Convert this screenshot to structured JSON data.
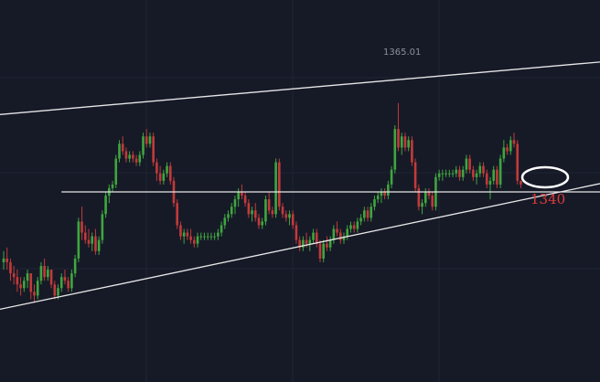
{
  "chart_data": {
    "type": "candlestick",
    "annotations": {
      "peak_label": "1365.01",
      "level_label": "1340"
    },
    "colors": {
      "background": "#161a27",
      "grid": "#1f2433",
      "up": "#3fa63f",
      "down": "#c23a3a",
      "trendline": "#e6e6e6",
      "level_text": "#e03b3b",
      "peak_text": "#8a8f9c"
    },
    "grid": true,
    "trendlines": [
      {
        "name": "upper-channel",
        "points": [
          [
            0,
            1362
          ],
          [
            174,
            1376
          ]
        ]
      },
      {
        "name": "lower-channel",
        "points": [
          [
            13,
            1312
          ],
          [
            174,
            1343
          ]
        ]
      },
      {
        "name": "support-level",
        "points": [
          [
            17,
            1341
          ],
          [
            174,
            1341
          ]
        ]
      }
    ],
    "candles": [
      [
        1322,
        1325,
        1320,
        1323
      ],
      [
        1323,
        1326,
        1320,
        1322
      ],
      [
        1322,
        1323,
        1317,
        1319
      ],
      [
        1319,
        1321,
        1316,
        1318
      ],
      [
        1318,
        1320,
        1314,
        1316
      ],
      [
        1316,
        1318,
        1313,
        1315
      ],
      [
        1315,
        1318,
        1314,
        1317
      ],
      [
        1317,
        1320,
        1315,
        1319
      ],
      [
        1319,
        1319,
        1312,
        1314
      ],
      [
        1314,
        1316,
        1311,
        1313
      ],
      [
        1313,
        1318,
        1312,
        1317
      ],
      [
        1317,
        1322,
        1316,
        1321
      ],
      [
        1321,
        1323,
        1317,
        1318
      ],
      [
        1318,
        1321,
        1317,
        1320
      ],
      [
        1320,
        1320,
        1315,
        1316
      ],
      [
        1316,
        1317,
        1312,
        1313
      ],
      [
        1313,
        1316,
        1312,
        1315
      ],
      [
        1315,
        1319,
        1314,
        1318
      ],
      [
        1318,
        1320,
        1316,
        1317
      ],
      [
        1317,
        1318,
        1314,
        1315
      ],
      [
        1315,
        1320,
        1314,
        1319
      ],
      [
        1319,
        1324,
        1318,
        1323
      ],
      [
        1323,
        1334,
        1322,
        1333
      ],
      [
        1333,
        1337,
        1328,
        1330
      ],
      [
        1330,
        1332,
        1327,
        1328
      ],
      [
        1328,
        1331,
        1326,
        1327
      ],
      [
        1327,
        1330,
        1325,
        1329
      ],
      [
        1329,
        1331,
        1324,
        1325
      ],
      [
        1325,
        1329,
        1324,
        1328
      ],
      [
        1328,
        1336,
        1327,
        1335
      ],
      [
        1335,
        1341,
        1334,
        1340
      ],
      [
        1340,
        1343,
        1338,
        1342
      ],
      [
        1342,
        1344,
        1341,
        1343
      ],
      [
        1343,
        1351,
        1342,
        1350
      ],
      [
        1350,
        1355,
        1349,
        1354
      ],
      [
        1354,
        1356,
        1351,
        1352
      ],
      [
        1352,
        1353,
        1349,
        1350
      ],
      [
        1350,
        1352,
        1349,
        1351
      ],
      [
        1351,
        1352,
        1349,
        1350
      ],
      [
        1350,
        1351,
        1348,
        1349
      ],
      [
        1349,
        1352,
        1348,
        1351
      ],
      [
        1351,
        1357,
        1350,
        1356
      ],
      [
        1356,
        1358,
        1353,
        1354
      ],
      [
        1354,
        1357,
        1353,
        1356
      ],
      [
        1356,
        1357,
        1348,
        1349
      ],
      [
        1349,
        1350,
        1344,
        1346
      ],
      [
        1346,
        1348,
        1343,
        1344
      ],
      [
        1344,
        1347,
        1343,
        1346
      ],
      [
        1346,
        1349,
        1345,
        1348
      ],
      [
        1348,
        1349,
        1343,
        1344
      ],
      [
        1344,
        1345,
        1337,
        1338
      ],
      [
        1338,
        1339,
        1331,
        1332
      ],
      [
        1332,
        1333,
        1328,
        1329
      ],
      [
        1329,
        1331,
        1327,
        1330
      ],
      [
        1330,
        1331,
        1328,
        1329
      ],
      [
        1329,
        1331,
        1327,
        1328
      ],
      [
        1328,
        1329,
        1326,
        1327
      ],
      [
        1327,
        1330,
        1326,
        1329
      ],
      [
        1329,
        1330,
        1328,
        1329
      ],
      [
        1329,
        1330,
        1328,
        1329
      ],
      [
        1329,
        1330,
        1328,
        1329
      ],
      [
        1329,
        1330,
        1328,
        1329
      ],
      [
        1329,
        1330,
        1328,
        1329
      ],
      [
        1329,
        1331,
        1328,
        1330
      ],
      [
        1330,
        1333,
        1329,
        1332
      ],
      [
        1332,
        1335,
        1331,
        1334
      ],
      [
        1334,
        1336,
        1333,
        1335
      ],
      [
        1335,
        1338,
        1334,
        1337
      ],
      [
        1337,
        1340,
        1335,
        1339
      ],
      [
        1339,
        1342,
        1337,
        1341
      ],
      [
        1341,
        1343,
        1339,
        1340
      ],
      [
        1340,
        1341,
        1337,
        1338
      ],
      [
        1338,
        1339,
        1334,
        1335
      ],
      [
        1335,
        1337,
        1333,
        1336
      ],
      [
        1336,
        1338,
        1333,
        1334
      ],
      [
        1334,
        1335,
        1331,
        1332
      ],
      [
        1332,
        1334,
        1331,
        1333
      ],
      [
        1333,
        1340,
        1332,
        1339
      ],
      [
        1339,
        1341,
        1335,
        1336
      ],
      [
        1336,
        1337,
        1334,
        1335
      ],
      [
        1335,
        1350,
        1334,
        1349
      ],
      [
        1349,
        1350,
        1336,
        1337
      ],
      [
        1337,
        1338,
        1334,
        1335
      ],
      [
        1335,
        1336,
        1333,
        1334
      ],
      [
        1334,
        1336,
        1332,
        1335
      ],
      [
        1335,
        1336,
        1331,
        1332
      ],
      [
        1332,
        1333,
        1327,
        1328
      ],
      [
        1328,
        1329,
        1325,
        1326
      ],
      [
        1326,
        1329,
        1325,
        1328
      ],
      [
        1328,
        1330,
        1326,
        1327
      ],
      [
        1327,
        1329,
        1325,
        1328
      ],
      [
        1328,
        1331,
        1327,
        1330
      ],
      [
        1330,
        1331,
        1326,
        1327
      ],
      [
        1327,
        1328,
        1322,
        1323
      ],
      [
        1323,
        1328,
        1322,
        1327
      ],
      [
        1327,
        1329,
        1325,
        1326
      ],
      [
        1326,
        1329,
        1325,
        1328
      ],
      [
        1328,
        1332,
        1327,
        1331
      ],
      [
        1331,
        1333,
        1329,
        1330
      ],
      [
        1330,
        1331,
        1327,
        1328
      ],
      [
        1328,
        1330,
        1327,
        1329
      ],
      [
        1329,
        1332,
        1328,
        1331
      ],
      [
        1331,
        1333,
        1330,
        1332
      ],
      [
        1332,
        1333,
        1330,
        1331
      ],
      [
        1331,
        1334,
        1330,
        1333
      ],
      [
        1333,
        1335,
        1332,
        1334
      ],
      [
        1334,
        1337,
        1333,
        1336
      ],
      [
        1336,
        1337,
        1333,
        1334
      ],
      [
        1334,
        1338,
        1333,
        1337
      ],
      [
        1337,
        1340,
        1336,
        1339
      ],
      [
        1339,
        1341,
        1338,
        1340
      ],
      [
        1340,
        1342,
        1338,
        1341
      ],
      [
        1341,
        1342,
        1339,
        1340
      ],
      [
        1340,
        1344,
        1339,
        1343
      ],
      [
        1343,
        1348,
        1342,
        1347
      ],
      [
        1347,
        1359,
        1346,
        1358
      ],
      [
        1358,
        1365,
        1352,
        1353
      ],
      [
        1353,
        1357,
        1351,
        1356
      ],
      [
        1356,
        1357,
        1352,
        1353
      ],
      [
        1353,
        1356,
        1352,
        1355
      ],
      [
        1355,
        1356,
        1348,
        1349
      ],
      [
        1349,
        1350,
        1341,
        1342
      ],
      [
        1342,
        1343,
        1336,
        1337
      ],
      [
        1337,
        1339,
        1335,
        1338
      ],
      [
        1338,
        1342,
        1337,
        1341
      ],
      [
        1341,
        1342,
        1339,
        1340
      ],
      [
        1340,
        1341,
        1336,
        1337
      ],
      [
        1337,
        1346,
        1336,
        1345
      ],
      [
        1345,
        1347,
        1344,
        1346
      ],
      [
        1346,
        1347,
        1344,
        1346
      ],
      [
        1346,
        1347,
        1345,
        1346
      ],
      [
        1346,
        1347,
        1345,
        1346
      ],
      [
        1346,
        1347,
        1345,
        1346
      ],
      [
        1346,
        1348,
        1345,
        1347
      ],
      [
        1347,
        1348,
        1344,
        1345
      ],
      [
        1345,
        1348,
        1344,
        1347
      ],
      [
        1347,
        1351,
        1346,
        1350
      ],
      [
        1350,
        1351,
        1346,
        1347
      ],
      [
        1347,
        1348,
        1344,
        1345
      ],
      [
        1345,
        1347,
        1343,
        1346
      ],
      [
        1346,
        1349,
        1345,
        1348
      ],
      [
        1348,
        1349,
        1345,
        1346
      ],
      [
        1346,
        1347,
        1342,
        1343
      ],
      [
        1343,
        1345,
        1339,
        1344
      ],
      [
        1344,
        1348,
        1343,
        1347
      ],
      [
        1347,
        1348,
        1342,
        1343
      ],
      [
        1343,
        1351,
        1342,
        1350
      ],
      [
        1350,
        1355,
        1349,
        1353
      ],
      [
        1353,
        1354,
        1351,
        1352
      ],
      [
        1352,
        1356,
        1351,
        1355
      ],
      [
        1355,
        1357,
        1353,
        1354
      ],
      [
        1354,
        1355,
        1343,
        1344
      ],
      [
        1344,
        1344,
        1342,
        1343
      ]
    ]
  }
}
